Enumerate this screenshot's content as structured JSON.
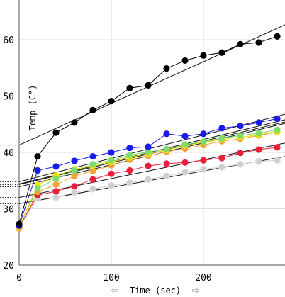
{
  "chart_data": {
    "type": "scatter",
    "xlabel": "Time (sec)",
    "ylabel": "Temp (C°)",
    "xlim": [
      0,
      290
    ],
    "ylim": [
      20,
      68
    ],
    "x_ticks": [
      0,
      100,
      200
    ],
    "y_ticks": [
      20,
      30,
      40,
      50,
      60
    ],
    "grid": true,
    "x": [
      0,
      20,
      40,
      60,
      80,
      100,
      120,
      140,
      160,
      180,
      200,
      220,
      240,
      260,
      280
    ],
    "series": [
      {
        "color": "#000000",
        "values": [
          27.3,
          39.3,
          43.5,
          45.3,
          47.5,
          49.1,
          51.4,
          51.9,
          54.9,
          56.3,
          57.2,
          57.7,
          59.2,
          59.5,
          60.6
        ],
        "fit": {
          "slope": 0.074,
          "intercept": 41.3
        }
      },
      {
        "color": "#1a1aee",
        "values": [
          27.0,
          36.8,
          37.5,
          38.5,
          39.3,
          40.0,
          40.8,
          41.0,
          43.3,
          42.9,
          43.3,
          44.3,
          44.7,
          45.3,
          46.0
        ],
        "fit": {
          "slope": 0.0415,
          "intercept": 34.8
        }
      },
      {
        "color": "#7fdc6a",
        "values": [
          27.0,
          33.6,
          35.3,
          36.8,
          37.9,
          38.6,
          39.5,
          40.1,
          40.6,
          41.4,
          41.9,
          42.5,
          43.0,
          43.4,
          44.0
        ],
        "fit": {
          "slope": 0.0395,
          "intercept": 34.4
        }
      },
      {
        "color": "#ece400",
        "values": [
          26.8,
          34.2,
          35.9,
          37.0,
          37.6,
          38.3,
          39.1,
          39.8,
          40.4,
          41.2,
          41.8,
          42.3,
          42.7,
          43.1,
          43.7
        ],
        "fit": {
          "slope": 0.0385,
          "intercept": 34.3
        }
      },
      {
        "color": "#f2a23a",
        "values": [
          26.5,
          33.0,
          34.3,
          35.8,
          36.7,
          37.7,
          38.7,
          39.4,
          40.1,
          40.7,
          41.3,
          42.0,
          42.4,
          43.0,
          43.6
        ],
        "fit": {
          "slope": 0.039,
          "intercept": 33.9
        }
      },
      {
        "color": "#e8203a",
        "values": [
          26.8,
          32.4,
          33.1,
          34.0,
          35.2,
          36.2,
          36.8,
          37.6,
          38.0,
          38.2,
          38.6,
          39.0,
          39.9,
          40.5,
          40.9
        ],
        "fit": {
          "slope": 0.0335,
          "intercept": 32.0
        }
      },
      {
        "color": "#cfcfcf",
        "values": [
          26.7,
          31.8,
          32.0,
          32.9,
          33.5,
          34.1,
          34.6,
          35.2,
          35.8,
          36.5,
          37.0,
          37.4,
          37.9,
          38.4,
          38.6
        ],
        "fit": {
          "slope": 0.029,
          "intercept": 30.9
        }
      }
    ]
  }
}
